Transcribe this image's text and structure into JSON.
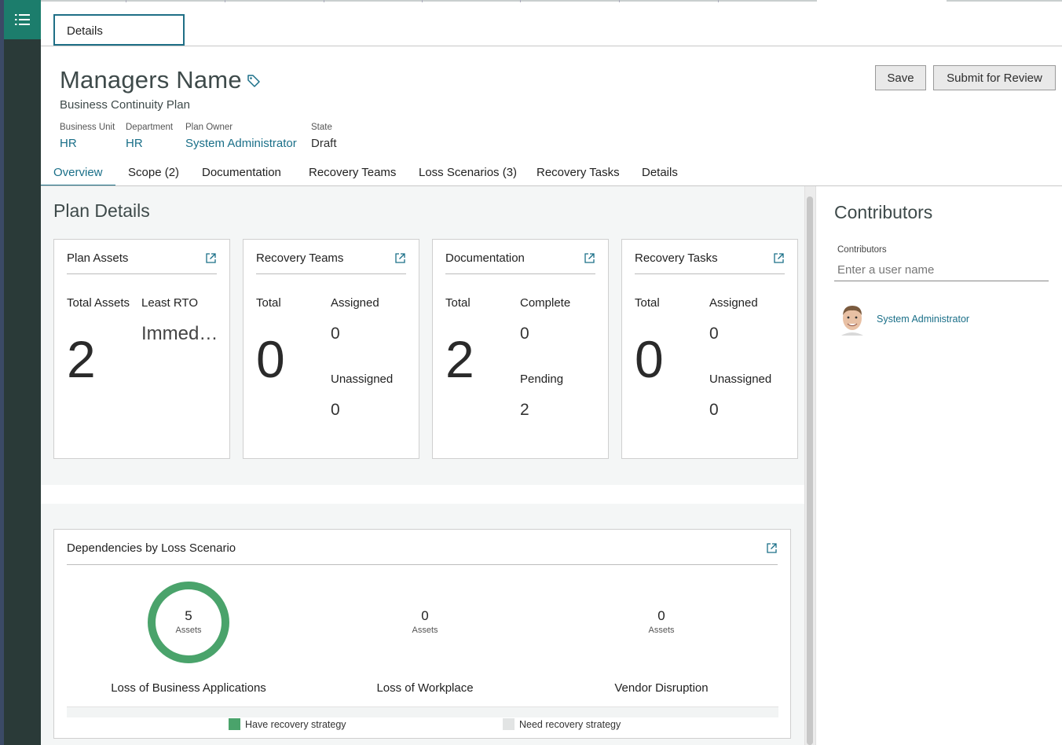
{
  "header": {
    "details_tab": "Details",
    "title": "Managers Name",
    "subtitle": "Business Continuity Plan",
    "save_label": "Save",
    "submit_label": "Submit for Review"
  },
  "meta": [
    {
      "label": "Business Unit",
      "value": "HR"
    },
    {
      "label": "Department",
      "value": "HR"
    },
    {
      "label": "Plan Owner",
      "value": "System Administrator"
    },
    {
      "label": "State",
      "value": "Draft"
    }
  ],
  "tabs": [
    "Overview",
    "Scope (2)",
    "Documentation",
    "Recovery Teams",
    "Loss Scenarios (3)",
    "Recovery Tasks",
    "Details"
  ],
  "plan_details": {
    "title": "Plan Details",
    "cards": [
      {
        "title": "Plan Assets",
        "col1": "Total Assets",
        "col2": "Least RTO",
        "big": "2",
        "rto": "Immed…"
      },
      {
        "title": "Recovery Teams",
        "col1": "Total",
        "col2": "Assigned",
        "big": "0",
        "v1": "0",
        "sub": "Unassigned",
        "v2": "0"
      },
      {
        "title": "Documentation",
        "col1": "Total",
        "col2": "Complete",
        "big": "2",
        "v1": "0",
        "sub": "Pending",
        "v2": "2"
      },
      {
        "title": "Recovery Tasks",
        "col1": "Total",
        "col2": "Assigned",
        "big": "0",
        "v1": "0",
        "sub": "Unassigned",
        "v2": "0"
      }
    ]
  },
  "dependencies": {
    "title": "Dependencies by Loss Scenario",
    "items": [
      {
        "count": "5",
        "unit": "Assets",
        "label": "Loss of Business Applications",
        "have_fraction": 1.0
      },
      {
        "count": "0",
        "unit": "Assets",
        "label": "Loss of Workplace",
        "have_fraction": 0
      },
      {
        "count": "0",
        "unit": "Assets",
        "label": "Vendor Disruption",
        "have_fraction": 0
      }
    ],
    "legend": [
      {
        "label": "Have recovery strategy",
        "color": "#4aa36b"
      },
      {
        "label": "Need recovery strategy",
        "color": "#e2e4e4"
      }
    ]
  },
  "contributors": {
    "title": "Contributors",
    "field_label": "Contributors",
    "placeholder": "Enter a user name",
    "users": [
      "System Administrator"
    ]
  },
  "colors": {
    "accent": "#1f6f86",
    "rail": "#2a3a38",
    "rail_button": "#1c7d6c",
    "donut": "#4aa36b"
  }
}
